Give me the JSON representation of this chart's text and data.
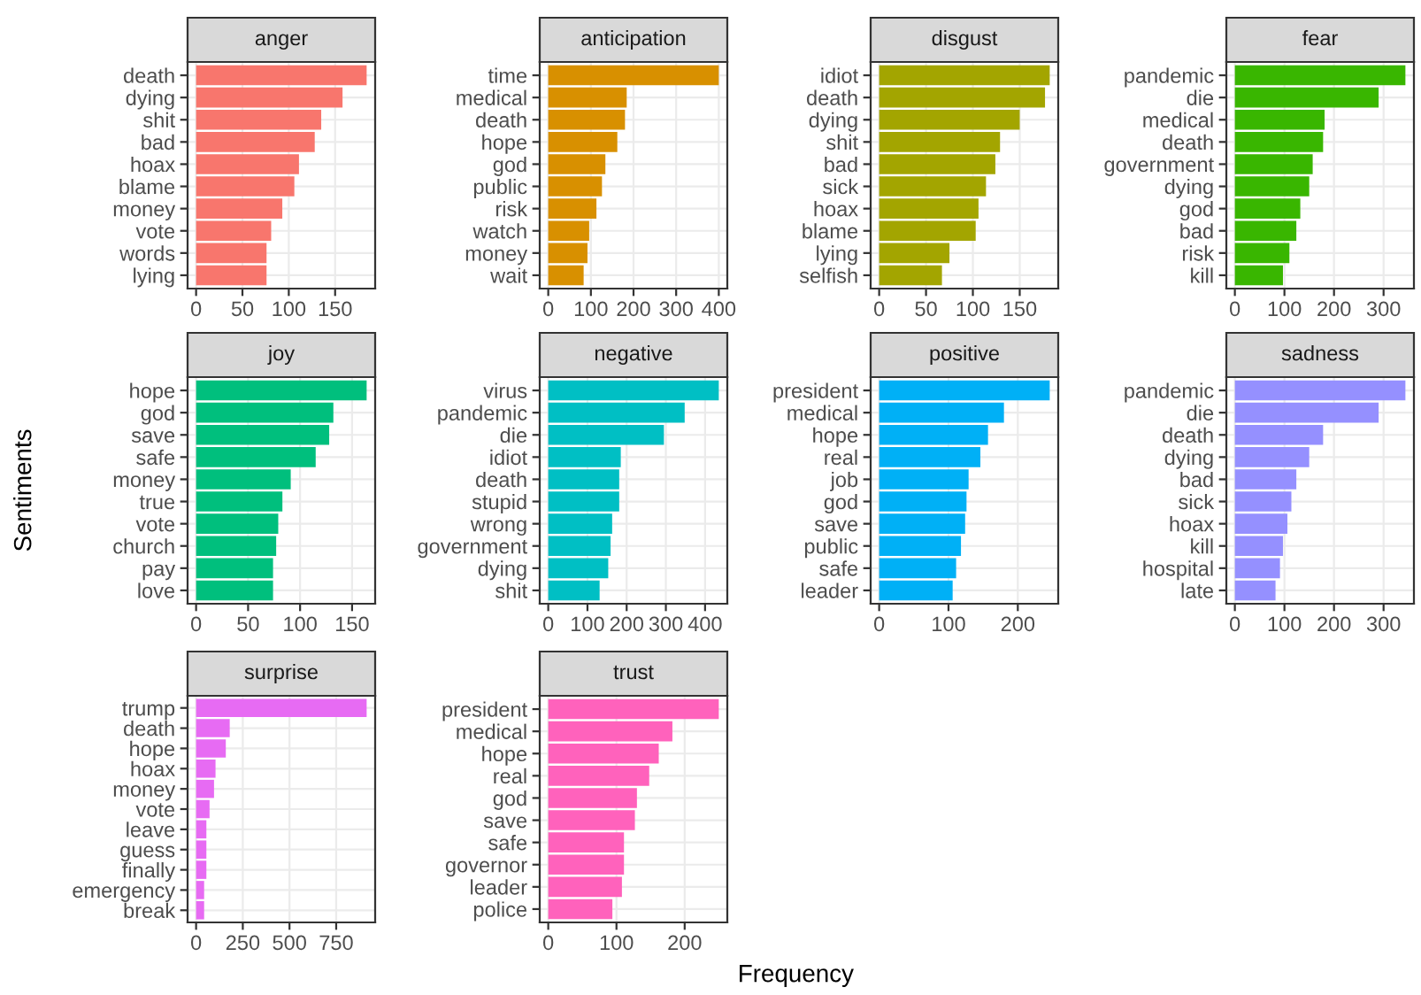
{
  "chart_data": [
    {
      "type": "bar",
      "orientation": "horizontal",
      "title": "anger",
      "categories": [
        "death",
        "dying",
        "shit",
        "bad",
        "hoax",
        "blame",
        "money",
        "vote",
        "words",
        "lying"
      ],
      "values": [
        184,
        158,
        135,
        128,
        111,
        106,
        93,
        81,
        76,
        76
      ],
      "color": "#f8766d",
      "xlim": [
        -9.2,
        193.2
      ],
      "xticks": [
        0,
        50,
        100,
        150
      ],
      "grid": true
    },
    {
      "type": "bar",
      "orientation": "horizontal",
      "title": "anticipation",
      "categories": [
        "time",
        "medical",
        "death",
        "hope",
        "god",
        "public",
        "risk",
        "watch",
        "money",
        "wait"
      ],
      "values": [
        400,
        184,
        180,
        162,
        134,
        126,
        113,
        96,
        92,
        83
      ],
      "color": "#d89000",
      "xlim": [
        -20,
        420
      ],
      "xticks": [
        0,
        100,
        200,
        300,
        400
      ],
      "grid": true
    },
    {
      "type": "bar",
      "orientation": "horizontal",
      "title": "disgust",
      "categories": [
        "idiot",
        "death",
        "dying",
        "shit",
        "bad",
        "sick",
        "hoax",
        "blame",
        "lying",
        "selfish"
      ],
      "values": [
        182,
        177,
        150,
        129,
        124,
        114,
        106,
        103,
        75,
        67
      ],
      "color": "#a3a500",
      "xlim": [
        -9.1,
        191.1
      ],
      "xticks": [
        0,
        50,
        100,
        150
      ],
      "grid": true
    },
    {
      "type": "bar",
      "orientation": "horizontal",
      "title": "fear",
      "categories": [
        "pandemic",
        "die",
        "medical",
        "death",
        "government",
        "dying",
        "god",
        "bad",
        "risk",
        "kill"
      ],
      "values": [
        344,
        290,
        181,
        178,
        157,
        150,
        132,
        124,
        110,
        97
      ],
      "color": "#39b600",
      "xlim": [
        -17.2,
        361.2
      ],
      "xticks": [
        0,
        100,
        200,
        300
      ],
      "grid": true
    },
    {
      "type": "bar",
      "orientation": "horizontal",
      "title": "joy",
      "ylabel": "Sentiments",
      "categories": [
        "hope",
        "god",
        "save",
        "safe",
        "money",
        "true",
        "vote",
        "church",
        "pay",
        "love"
      ],
      "values": [
        164,
        132,
        128,
        115,
        91,
        83,
        79,
        77,
        74,
        74
      ],
      "color": "#00bf7d",
      "xlim": [
        -8.2,
        172.2
      ],
      "xticks": [
        0,
        50,
        100,
        150
      ],
      "grid": true
    },
    {
      "type": "bar",
      "orientation": "horizontal",
      "title": "negative",
      "categories": [
        "virus",
        "pandemic",
        "die",
        "idiot",
        "death",
        "stupid",
        "wrong",
        "government",
        "dying",
        "shit"
      ],
      "values": [
        435,
        348,
        295,
        185,
        181,
        181,
        163,
        159,
        153,
        131
      ],
      "color": "#00bfc4",
      "xlim": [
        -21.75,
        456.75
      ],
      "xticks": [
        0,
        100,
        200,
        300,
        400
      ],
      "grid": true
    },
    {
      "type": "bar",
      "orientation": "horizontal",
      "title": "positive",
      "categories": [
        "president",
        "medical",
        "hope",
        "real",
        "job",
        "god",
        "save",
        "public",
        "safe",
        "leader"
      ],
      "values": [
        246,
        180,
        157,
        146,
        129,
        126,
        124,
        118,
        111,
        106
      ],
      "color": "#00b0f6",
      "xlim": [
        -12.3,
        258.3
      ],
      "xticks": [
        0,
        100,
        200
      ],
      "grid": true
    },
    {
      "type": "bar",
      "orientation": "horizontal",
      "title": "sadness",
      "categories": [
        "pandemic",
        "die",
        "death",
        "dying",
        "bad",
        "sick",
        "hoax",
        "kill",
        "hospital",
        "late"
      ],
      "values": [
        344,
        290,
        178,
        150,
        124,
        114,
        106,
        97,
        91,
        82
      ],
      "color": "#9590ff",
      "xlim": [
        -17.2,
        361.2
      ],
      "xticks": [
        0,
        100,
        200,
        300
      ],
      "grid": true
    },
    {
      "type": "bar",
      "orientation": "horizontal",
      "title": "surprise",
      "categories": [
        "trump",
        "death",
        "hope",
        "hoax",
        "money",
        "vote",
        "leave",
        "guess",
        "finally",
        "emergency",
        "break"
      ],
      "values": [
        913,
        180,
        159,
        104,
        96,
        72,
        55,
        55,
        55,
        43,
        43
      ],
      "color": "#e76bf3",
      "xlim": [
        -45.65,
        958.65
      ],
      "xticks": [
        0,
        250,
        500,
        750
      ],
      "grid": true
    },
    {
      "type": "bar",
      "orientation": "horizontal",
      "title": "trust",
      "xlabel": "Frequency",
      "categories": [
        "president",
        "medical",
        "hope",
        "real",
        "god",
        "save",
        "safe",
        "governor",
        "leader",
        "police"
      ],
      "values": [
        250,
        182,
        162,
        148,
        130,
        127,
        111,
        111,
        108,
        94
      ],
      "color": "#ff62bc",
      "xlim": [
        -12.5,
        262.5
      ],
      "xticks": [
        0,
        100,
        200
      ],
      "grid": true
    }
  ]
}
